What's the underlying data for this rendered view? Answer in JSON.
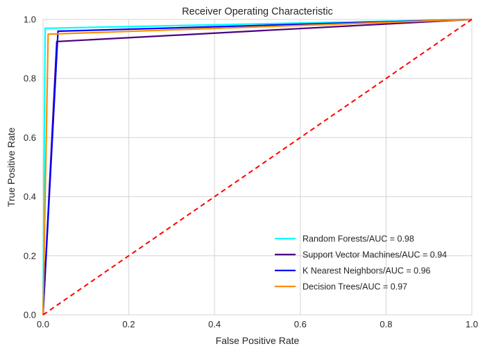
{
  "chart_data": {
    "type": "line",
    "title": "Receiver Operating Characteristic",
    "xlabel": "False Positive Rate",
    "ylabel": "True Positive Rate",
    "xlim": [
      0,
      1
    ],
    "ylim": [
      0,
      1
    ],
    "x_ticks": [
      "0.0",
      "0.2",
      "0.4",
      "0.6",
      "0.8",
      "1.0"
    ],
    "y_ticks": [
      "0.0",
      "0.2",
      "0.4",
      "0.6",
      "0.8",
      "1.0"
    ],
    "grid": true,
    "legend_position": "bottom-right",
    "series": [
      {
        "name": "Random Forests/AUC = 0.98",
        "color": "#00ffff",
        "x": [
          0.0,
          0.005,
          1.0
        ],
        "y": [
          0.0,
          0.97,
          1.0
        ]
      },
      {
        "name": "Support Vector Machines/AUC = 0.94",
        "color": "#4b0082",
        "x": [
          0.0,
          0.032,
          1.0
        ],
        "y": [
          0.0,
          0.925,
          1.0
        ]
      },
      {
        "name": "K Nearest Neighbors/AUC = 0.96",
        "color": "#0000ff",
        "x": [
          0.0,
          0.035,
          1.0
        ],
        "y": [
          0.0,
          0.96,
          1.0
        ]
      },
      {
        "name": "Decision Trees/AUC = 0.97",
        "color": "#ff8c00",
        "x": [
          0.0,
          0.012,
          1.0
        ],
        "y": [
          0.0,
          0.95,
          1.0
        ]
      }
    ],
    "reference_line": {
      "style": "dashed",
      "color": "#ff0000",
      "x": [
        0,
        1
      ],
      "y": [
        0,
        1
      ]
    }
  }
}
